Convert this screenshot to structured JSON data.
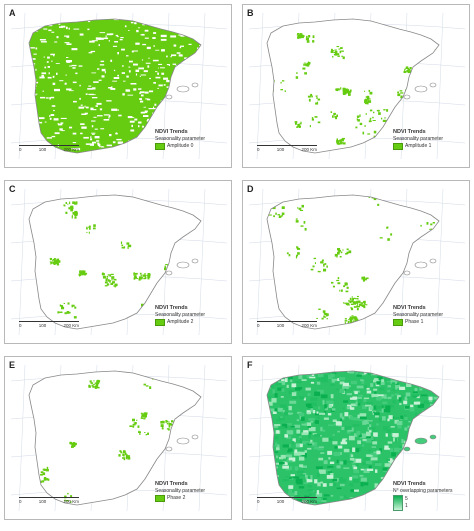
{
  "legend_title": "NDVI Trends",
  "legend_subtitle": "Seasonality parameter",
  "legend_subtitle_f": "N° overlapping parameters",
  "scale_labels": [
    "0",
    "100",
    "200 Km"
  ],
  "colors": {
    "fill": "#66cc11",
    "land_outline": "#888888",
    "gradient_dark": "#0ab050",
    "gradient_light": "#c8f2d6"
  },
  "panels": [
    {
      "letter": "A",
      "legend_item": "Amplitude 0",
      "density": 0.85
    },
    {
      "letter": "B",
      "legend_item": "Amplitude 1",
      "density": 0.22
    },
    {
      "letter": "C",
      "legend_item": "Amplitude 2",
      "density": 0.12
    },
    {
      "letter": "D",
      "legend_item": "Phase 1",
      "density": 0.14
    },
    {
      "letter": "E",
      "legend_item": "Phase 2",
      "density": 0.09
    },
    {
      "letter": "F",
      "legend_item_min": "1",
      "legend_item_max": "5",
      "density": 1.0
    }
  ]
}
